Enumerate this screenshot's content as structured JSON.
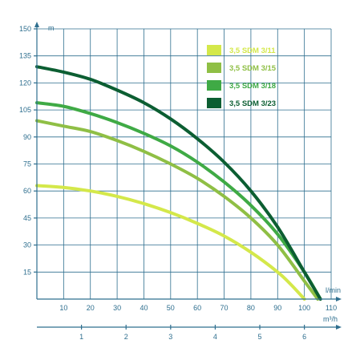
{
  "chart_data": {
    "type": "line",
    "y_unit": "m",
    "x_unit": "l/min",
    "x2_unit": "m³/h",
    "ylim": [
      0,
      150
    ],
    "xlim": [
      0,
      110
    ],
    "y_ticks": [
      "15",
      "30",
      "45",
      "60",
      "75",
      "90",
      "105",
      "120",
      "135",
      "150"
    ],
    "x_ticks": [
      "10",
      "20",
      "30",
      "40",
      "50",
      "60",
      "70",
      "80",
      "90",
      "100",
      "110"
    ],
    "x2_ticks": [
      "1",
      "2",
      "3",
      "4",
      "5",
      "6"
    ],
    "grid": true,
    "legend_position": "top-right",
    "series": [
      {
        "name": "3,5 SDM 3/11",
        "color": "#d4e84a",
        "x": [
          0,
          10,
          20,
          30,
          40,
          50,
          60,
          70,
          80,
          90,
          95,
          100
        ],
        "y": [
          63,
          62,
          60,
          57,
          53,
          48,
          42,
          35,
          26,
          15,
          8,
          0
        ]
      },
      {
        "name": "3,5 SDM 3/15",
        "color": "#8fbf45",
        "x": [
          0,
          10,
          20,
          30,
          40,
          50,
          60,
          70,
          80,
          90,
          100,
          105
        ],
        "y": [
          99,
          96,
          93,
          88,
          82,
          75,
          67,
          57,
          45,
          30,
          10,
          0
        ]
      },
      {
        "name": "3,5 SDM 3/18",
        "color": "#3faa45",
        "x": [
          0,
          10,
          20,
          30,
          40,
          50,
          60,
          70,
          80,
          90,
          100,
          106
        ],
        "y": [
          109,
          107,
          103,
          98,
          92,
          85,
          76,
          65,
          52,
          36,
          15,
          0
        ]
      },
      {
        "name": "3,5 SDM 3/23",
        "color": "#0c5e32",
        "x": [
          0,
          10,
          20,
          30,
          40,
          50,
          60,
          70,
          80,
          90,
          100,
          106
        ],
        "y": [
          129,
          126,
          122,
          116,
          109,
          100,
          89,
          76,
          60,
          40,
          15,
          0
        ]
      }
    ]
  }
}
